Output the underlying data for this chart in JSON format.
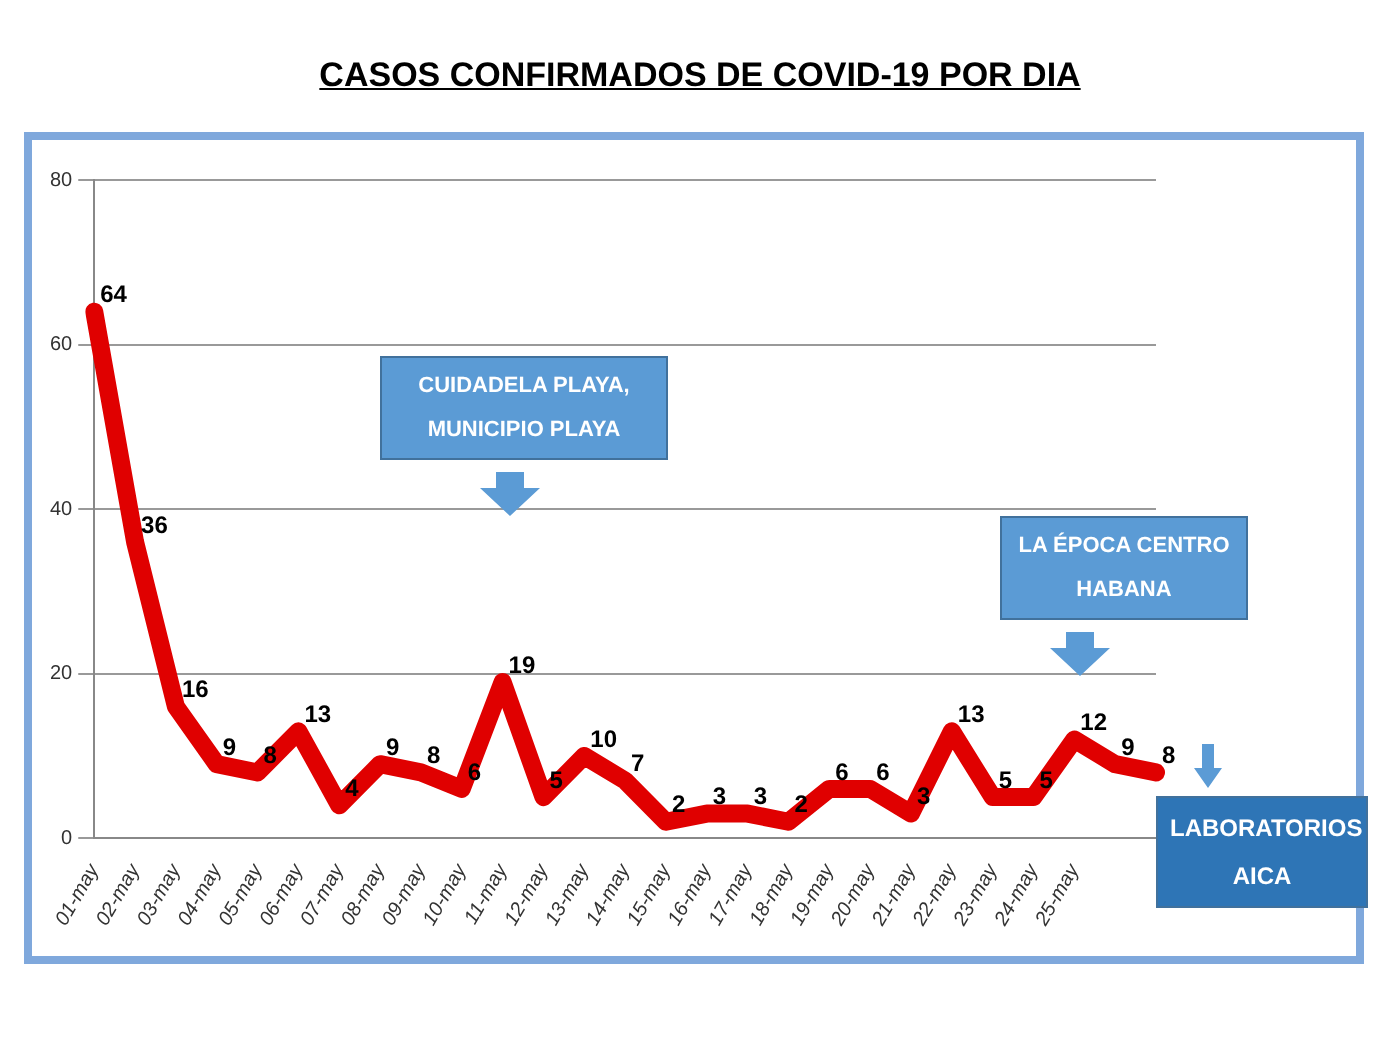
{
  "chart_data": {
    "type": "line",
    "title": "CASOS CONFIRMADOS DE COVID-19 POR DIA",
    "categories": [
      "01-may",
      "02-may",
      "03-may",
      "04-may",
      "05-may",
      "06-may",
      "07-may",
      "08-may",
      "09-may",
      "10-may",
      "11-may",
      "12-may",
      "13-may",
      "14-may",
      "15-may",
      "16-may",
      "17-may",
      "18-may",
      "19-may",
      "20-may",
      "21-may",
      "22-may",
      "23-may",
      "24-may",
      "25-may",
      null,
      null
    ],
    "series": [
      {
        "color": "#e00000",
        "values": [
          64,
          36,
          16,
          9,
          8,
          13,
          4,
          9,
          8,
          6,
          19,
          5,
          10,
          7,
          2,
          3,
          3,
          2,
          6,
          6,
          3,
          13,
          5,
          5,
          12,
          9,
          8
        ]
      }
    ],
    "ylim": [
      0,
      80
    ],
    "yticks": [
      0,
      20,
      40,
      60,
      80
    ],
    "grid": "y",
    "data_labels": true,
    "marker": "none",
    "line_style": "solid",
    "annotations": [
      "CUIDADELA  PLAYA, MUNICIPIO PLAYA",
      "LA ÉPOCA CENTRO HABANA",
      "LABORATORIOS AICA"
    ]
  }
}
